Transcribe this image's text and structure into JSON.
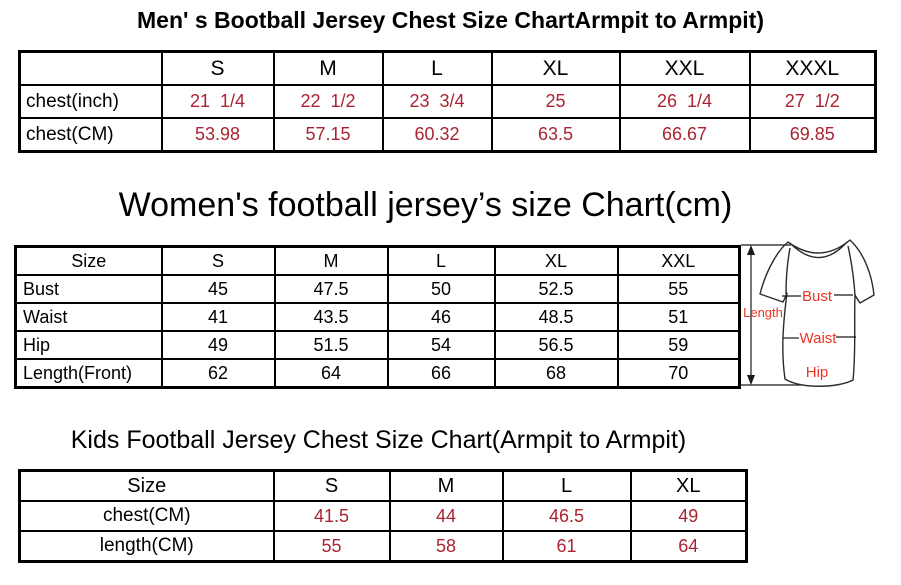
{
  "colors": {
    "value_red": "#aa2433",
    "diagram_red": "#ee3424",
    "table_border": "#000000"
  },
  "sections": {
    "men": {
      "title": "Men' s Bootball Jersey Chest Size ChartArmpit to Armpit)",
      "table": {
        "columns": [
          "",
          "S",
          "M",
          "L",
          "XL",
          "XXL",
          "XXXL"
        ],
        "rows": [
          {
            "label": "chest(inch)",
            "value_color": "red",
            "values": [
              "21  1/4",
              "22  1/2",
              "23  3/4",
              "25",
              "26  1/4",
              "27  1/2"
            ]
          },
          {
            "label": "chest(CM)",
            "value_color": "red",
            "values": [
              "53.98",
              "57.15",
              "60.32",
              "63.5",
              "66.67",
              "69.85"
            ]
          }
        ]
      }
    },
    "women": {
      "title": "Women's football jersey’s size Chart(cm)",
      "table": {
        "columns": [
          "Size",
          "S",
          "M",
          "L",
          "XL",
          "XXL"
        ],
        "rows": [
          {
            "label": "Bust",
            "value_color": "black",
            "values": [
              "45",
              "47.5",
              "50",
              "52.5",
              "55"
            ]
          },
          {
            "label": "Waist",
            "value_color": "black",
            "values": [
              "41",
              "43.5",
              "46",
              "48.5",
              "51"
            ]
          },
          {
            "label": "Hip",
            "value_color": "black",
            "values": [
              "49",
              "51.5",
              "54",
              "56.5",
              "59"
            ]
          },
          {
            "label": "Length(Front)",
            "value_color": "black",
            "values": [
              "62",
              "64",
              "66",
              "68",
              "70"
            ]
          }
        ]
      },
      "diagram": {
        "length": "Length",
        "bust": "Bust",
        "waist": "Waist",
        "hip": "Hip"
      }
    },
    "kids": {
      "title": "Kids Football Jersey Chest Size Chart(Armpit to Armpit)",
      "table": {
        "columns": [
          "Size",
          "S",
          "M",
          "L",
          "XL"
        ],
        "rows": [
          {
            "label": "chest(CM)",
            "value_color": "red",
            "values": [
              "41.5",
              "44",
              "46.5",
              "49"
            ]
          },
          {
            "label": "length(CM)",
            "value_color": "red",
            "values": [
              "55",
              "58",
              "61",
              "64"
            ]
          }
        ]
      }
    }
  }
}
